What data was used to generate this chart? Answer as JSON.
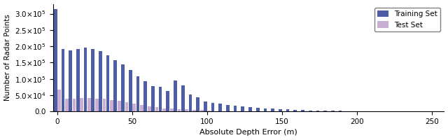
{
  "title": "",
  "xlabel": "Absolute Depth Error (m)",
  "ylabel": "Number of Radar Points",
  "bin_centers": [
    0,
    5,
    10,
    15,
    20,
    25,
    30,
    35,
    40,
    45,
    50,
    55,
    60,
    65,
    70,
    75,
    80,
    85,
    90,
    95,
    100,
    105,
    110,
    115,
    120,
    125,
    130,
    135,
    140,
    145,
    150,
    155,
    160,
    165,
    170,
    175,
    180,
    185,
    190,
    195,
    200,
    205,
    210,
    215,
    220,
    225,
    230,
    235,
    240,
    245,
    250,
    255
  ],
  "train_vals": [
    315000,
    192000,
    188000,
    192000,
    195000,
    192000,
    185000,
    173000,
    158000,
    145000,
    128000,
    108000,
    92000,
    78000,
    76000,
    63000,
    94000,
    80000,
    52000,
    43000,
    30000,
    26000,
    24000,
    20000,
    18000,
    16000,
    14000,
    12000,
    10000,
    8500,
    7000,
    6000,
    5000,
    4200,
    3500,
    3000,
    2500,
    2000,
    1700,
    1400,
    1100,
    900,
    750,
    600,
    500,
    400,
    350,
    280,
    220,
    180,
    140,
    110
  ],
  "test_vals": [
    68000,
    40000,
    40000,
    41000,
    41000,
    40000,
    39000,
    35000,
    32000,
    29000,
    24000,
    19500,
    15500,
    12500,
    9500,
    8000,
    7500,
    6000,
    5000,
    3700,
    1600,
    1300,
    1100,
    1000,
    900,
    750,
    650,
    550,
    450,
    380,
    320,
    270,
    220,
    180,
    150,
    120,
    100,
    85,
    70,
    60,
    50,
    42,
    35,
    30,
    25,
    20,
    17,
    14,
    12,
    10,
    8,
    6
  ],
  "train_color": "#4d5ea6",
  "test_color": "#c9afd4",
  "bar_width": 2.2,
  "bar_gap": 0.4,
  "xlim": [
    -3,
    258
  ],
  "ylim": [
    0,
    330000
  ],
  "yticks": [
    0,
    50000,
    100000,
    150000,
    200000,
    250000,
    300000
  ],
  "xticks": [
    0,
    50,
    100,
    150,
    200,
    250
  ],
  "legend_labels": [
    "Training Set",
    "Test Set"
  ],
  "figsize": [
    6.4,
    2.0
  ],
  "dpi": 100
}
